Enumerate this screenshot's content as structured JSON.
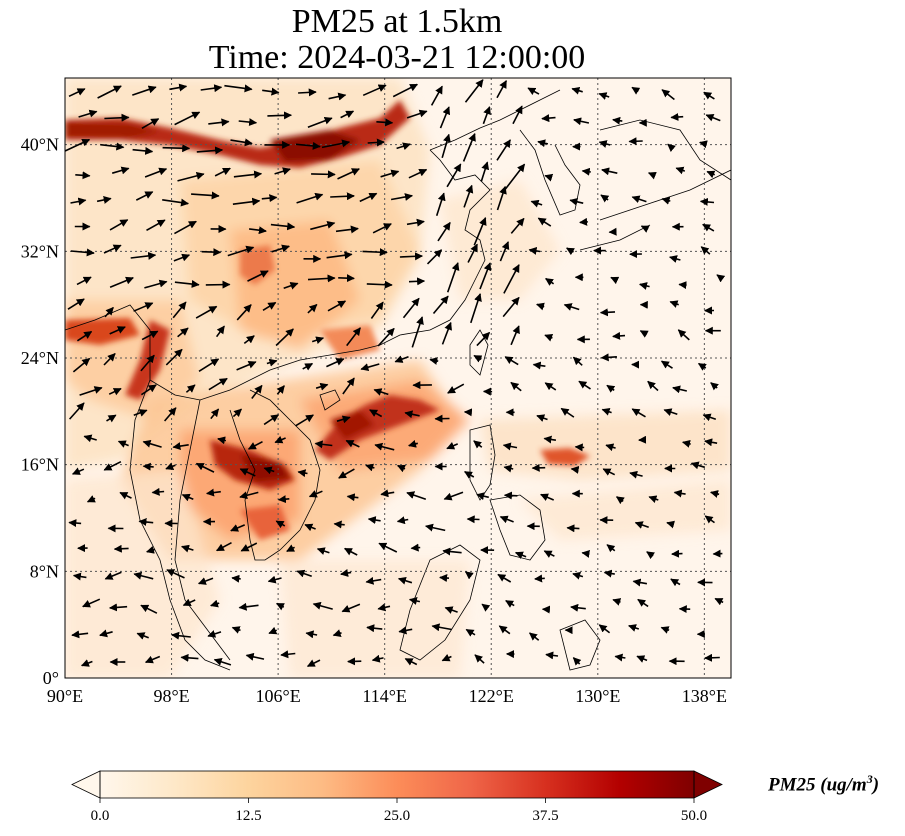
{
  "title_line1": "PM25 at 1.5km",
  "title_line2": "Time: 2024-03-21 12:00:00",
  "map": {
    "lon_range": [
      90,
      140
    ],
    "lat_range": [
      0,
      45
    ],
    "lon_ticks": [
      "90°E",
      "98°E",
      "106°E",
      "114°E",
      "122°E",
      "130°E",
      "138°E"
    ],
    "lat_ticks": [
      "0°",
      "8°N",
      "16°N",
      "24°N",
      "32°N",
      "40°N"
    ],
    "gridlines": true,
    "plume_colors": [
      "#fef3e6",
      "#fdd7a9",
      "#fc8d59",
      "#d7301f",
      "#7f0000"
    ],
    "wind_vector_color": "#000000"
  },
  "colorbar": {
    "ticks": [
      "0.0",
      "12.5",
      "25.0",
      "37.5",
      "50.0"
    ],
    "range": [
      0,
      50
    ],
    "extend": "both",
    "label_main": "PM25 (ug/m",
    "label_sup": "3",
    "label_end": ")",
    "colormap": [
      "#fff7ec",
      "#fee8c8",
      "#fdd49e",
      "#fdbb84",
      "#fc8d59",
      "#ef6548",
      "#d7301f",
      "#b30000",
      "#7f0000"
    ]
  }
}
